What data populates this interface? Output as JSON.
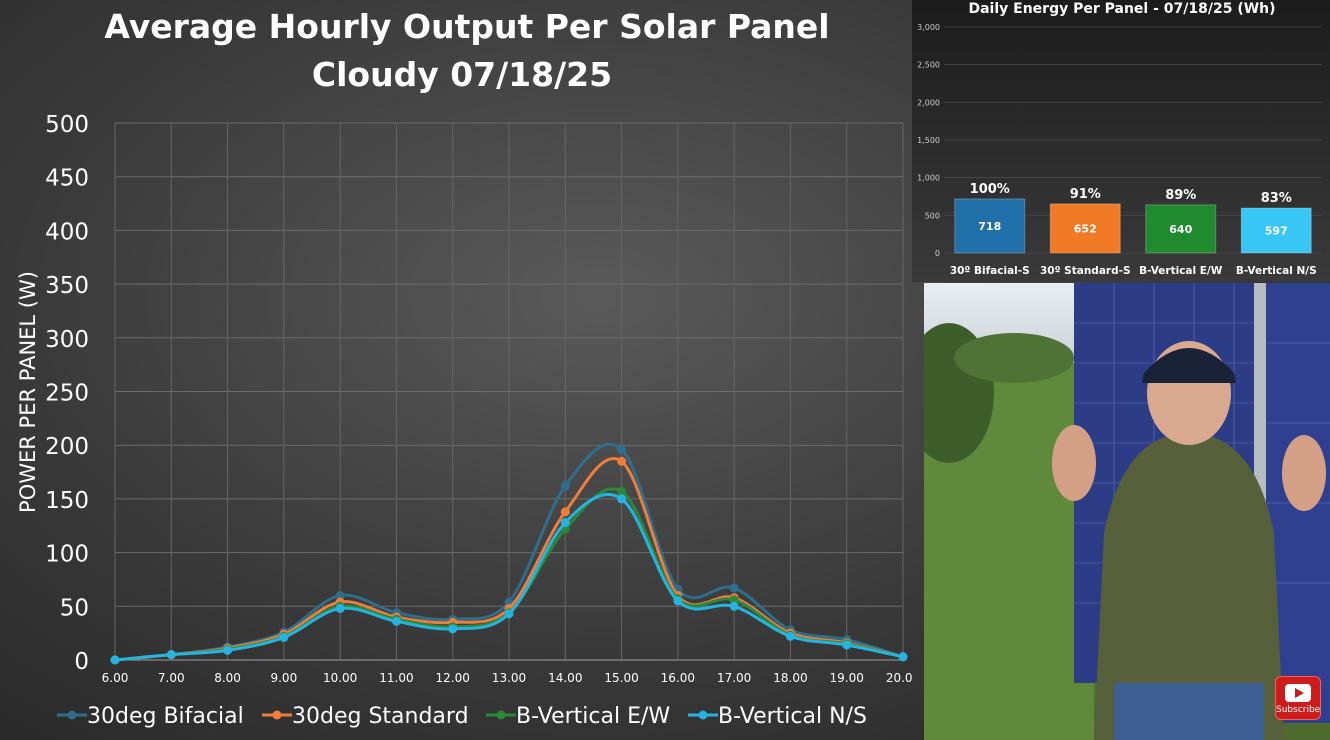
{
  "main_chart": {
    "title_line1": "Average Hourly Output Per Solar Panel",
    "title_line2": "Cloudy 07/18/25"
  },
  "chart_data": [
    {
      "type": "line",
      "title": "Average Hourly Output Per Solar Panel Cloudy 07/18/25",
      "xlabel": "",
      "ylabel": "POWER PER PANEL (W)",
      "ylim": [
        0,
        500
      ],
      "yticks": [
        "0",
        "50",
        "100",
        "150",
        "200",
        "250",
        "300",
        "350",
        "400",
        "450",
        "500"
      ],
      "x": [
        "6.00",
        "7.00",
        "8.00",
        "9.00",
        "10.00",
        "11.00",
        "12.00",
        "13.00",
        "14.00",
        "15.00",
        "16.00",
        "17.00",
        "18.00",
        "19.00",
        "20.00"
      ],
      "grid": true,
      "legend": "bottom",
      "series": [
        {
          "name": "30deg Bifacial",
          "color": "#2e6f8e",
          "values": [
            0,
            5,
            12,
            26,
            60,
            44,
            38,
            54,
            162,
            196,
            66,
            67,
            28,
            19,
            3
          ]
        },
        {
          "name": "30deg Standard",
          "color": "#ef7d3c",
          "values": [
            0,
            5,
            11,
            24,
            54,
            40,
            35,
            48,
            138,
            185,
            60,
            58,
            25,
            16,
            3
          ]
        },
        {
          "name": "B-Vertical E/W",
          "color": "#2a8a3a",
          "values": [
            0,
            5,
            10,
            22,
            50,
            38,
            31,
            44,
            122,
            157,
            57,
            56,
            23,
            15,
            3
          ]
        },
        {
          "name": "B-Vertical N/S",
          "color": "#27b3e0",
          "values": [
            0,
            5,
            9,
            21,
            48,
            36,
            29,
            43,
            128,
            150,
            55,
            50,
            22,
            14,
            3
          ]
        }
      ]
    },
    {
      "type": "bar",
      "title": "Daily Energy Per Panel - 07/18/25 (Wh)",
      "categories": [
        "30º Bifacial-S",
        "30º Standard-S",
        "B-Vertical E/W",
        "B-Vertical N/S"
      ],
      "values": [
        718,
        652,
        640,
        597
      ],
      "value_labels": [
        "718",
        "652",
        "640",
        "597"
      ],
      "percent_labels": [
        "100%",
        "91%",
        "89%",
        "83%"
      ],
      "colors": [
        "#1f6fa8",
        "#f07a26",
        "#1f8a2e",
        "#38c6f4"
      ],
      "ylim": [
        0,
        3000
      ],
      "yticks": [
        "0",
        "500",
        "1,000",
        "1,500",
        "2,000",
        "2,500",
        "3,000"
      ],
      "grid": true
    }
  ],
  "video": {
    "subscribe_label": "Subscribe"
  }
}
